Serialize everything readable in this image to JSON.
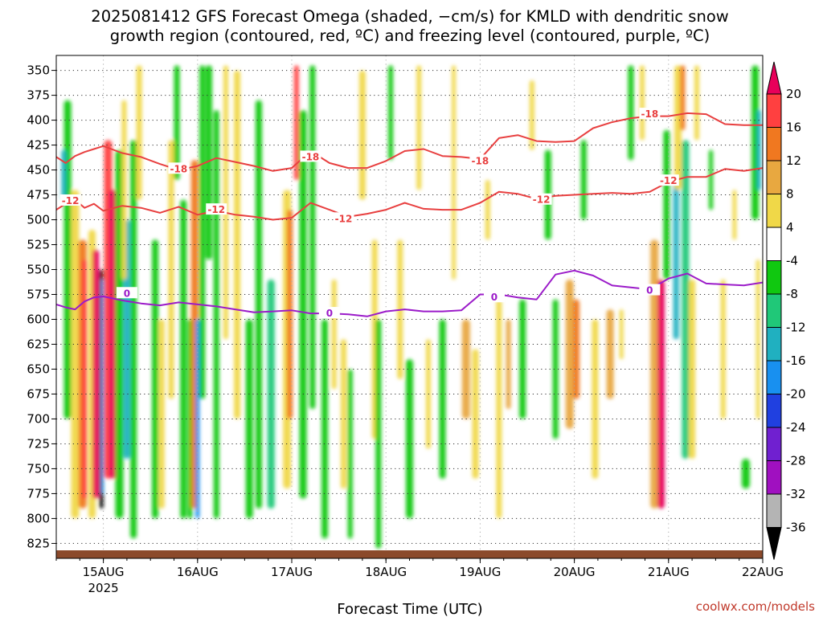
{
  "title_line1": "2025081412 GFS Forecast Omega (shaded, −cm/s) for KMLD with dendritic snow",
  "title_line2": "growth region (contoured, red, ºC) and freezing level (contoured, purple, ºC)",
  "credit": "coolwx.com/models",
  "chart_data": {
    "type": "heatmap",
    "xlabel": "Forecast Time (UTC)",
    "ylabel": "",
    "x_ticks": [
      {
        "day": 1.0,
        "label": "15AUG",
        "sublabel": "2025"
      },
      {
        "day": 2.0,
        "label": "16AUG",
        "sublabel": ""
      },
      {
        "day": 3.0,
        "label": "17AUG",
        "sublabel": ""
      },
      {
        "day": 4.0,
        "label": "18AUG",
        "sublabel": ""
      },
      {
        "day": 5.0,
        "label": "19AUG",
        "sublabel": ""
      },
      {
        "day": 6.0,
        "label": "20AUG",
        "sublabel": ""
      },
      {
        "day": 7.0,
        "label": "21AUG",
        "sublabel": ""
      },
      {
        "day": 8.0,
        "label": "22AUG",
        "sublabel": ""
      }
    ],
    "xlim": [
      0.5,
      8.0
    ],
    "y_ticks": [
      350,
      375,
      400,
      425,
      450,
      475,
      500,
      525,
      550,
      575,
      600,
      625,
      650,
      675,
      700,
      725,
      750,
      775,
      800,
      825
    ],
    "ylim": [
      335,
      840
    ],
    "colorbar": {
      "ticks": [
        20,
        16,
        12,
        8,
        4,
        -4,
        -8,
        -12,
        -16,
        -20,
        -24,
        -28,
        -32,
        -36
      ],
      "colors": [
        "#e8005a",
        "#ff4040",
        "#f07820",
        "#e8a840",
        "#f0d848",
        "#ffffff",
        "#10c810",
        "#20c878",
        "#20b0c0",
        "#1890f0",
        "#2040e0",
        "#7020d0",
        "#a010c0",
        "#b4b4b4",
        "#000000"
      ]
    },
    "contours": {
      "dgz_neg18": {
        "color": "#e84040",
        "label": "-18",
        "x": [
          0.5,
          0.6,
          0.7,
          0.8,
          0.9,
          1.0,
          1.2,
          1.4,
          1.6,
          1.8,
          2.0,
          2.2,
          2.4,
          2.6,
          2.8,
          3.0,
          3.2,
          3.4,
          3.6,
          3.8,
          4.0,
          4.2,
          4.4,
          4.6,
          4.8,
          5.0,
          5.2,
          5.4,
          5.6,
          5.8,
          6.0,
          6.2,
          6.4,
          6.6,
          6.8,
          7.0,
          7.2,
          7.4,
          7.6,
          7.8,
          8.0
        ],
        "y": [
          437,
          443,
          436,
          432,
          429,
          426,
          433,
          437,
          444,
          450,
          446,
          438,
          442,
          446,
          451,
          448,
          431,
          443,
          448,
          448,
          441,
          431,
          429,
          436,
          437,
          439,
          418,
          415,
          421,
          422,
          421,
          408,
          402,
          398,
          396,
          396,
          393,
          394,
          404,
          405,
          405
        ],
        "labels": [
          [
            1.8,
            449
          ],
          [
            3.2,
            437
          ],
          [
            5.0,
            441
          ],
          [
            6.8,
            394
          ]
        ]
      },
      "dgz_neg12": {
        "color": "#e84040",
        "label": "-12",
        "x": [
          0.5,
          0.6,
          0.7,
          0.8,
          0.9,
          1.0,
          1.2,
          1.4,
          1.6,
          1.8,
          2.0,
          2.2,
          2.4,
          2.6,
          2.8,
          3.0,
          3.2,
          3.4,
          3.6,
          3.8,
          4.0,
          4.2,
          4.4,
          4.6,
          4.8,
          5.0,
          5.2,
          5.4,
          5.6,
          5.8,
          6.0,
          6.2,
          6.4,
          6.6,
          6.8,
          7.0,
          7.2,
          7.4,
          7.6,
          7.8,
          8.0
        ],
        "y": [
          490,
          484,
          480,
          488,
          484,
          491,
          486,
          488,
          493,
          487,
          495,
          491,
          495,
          497,
          500,
          498,
          483,
          490,
          497,
          494,
          490,
          483,
          489,
          490,
          490,
          483,
          472,
          474,
          479,
          476,
          475,
          474,
          473,
          474,
          472,
          462,
          457,
          457,
          449,
          451,
          448
        ],
        "labels": [
          [
            0.65,
            481
          ],
          [
            2.2,
            490
          ],
          [
            3.55,
            499
          ],
          [
            5.65,
            480
          ],
          [
            7.0,
            461
          ]
        ]
      },
      "freezing_0": {
        "color": "#9b1bc9",
        "label": "0",
        "x": [
          0.5,
          0.6,
          0.7,
          0.8,
          0.9,
          1.0,
          1.2,
          1.4,
          1.6,
          1.8,
          2.0,
          2.2,
          2.4,
          2.6,
          2.8,
          3.0,
          3.2,
          3.4,
          3.6,
          3.8,
          4.0,
          4.2,
          4.4,
          4.6,
          4.8,
          5.0,
          5.2,
          5.4,
          5.6,
          5.8,
          6.0,
          6.2,
          6.4,
          6.6,
          6.8,
          7.0,
          7.2,
          7.4,
          7.6,
          7.8,
          8.0
        ],
        "y": [
          585,
          588,
          590,
          582,
          578,
          577,
          581,
          584,
          586,
          583,
          585,
          587,
          590,
          593,
          592,
          591,
          594,
          594,
          595,
          597,
          592,
          590,
          592,
          592,
          591,
          575,
          575,
          578,
          580,
          555,
          551,
          556,
          566,
          568,
          570,
          559,
          554,
          564,
          565,
          566,
          563
        ],
        "labels": [
          [
            1.25,
            574
          ],
          [
            3.4,
            594
          ],
          [
            5.15,
            578
          ],
          [
            6.8,
            571
          ]
        ]
      }
    }
  }
}
